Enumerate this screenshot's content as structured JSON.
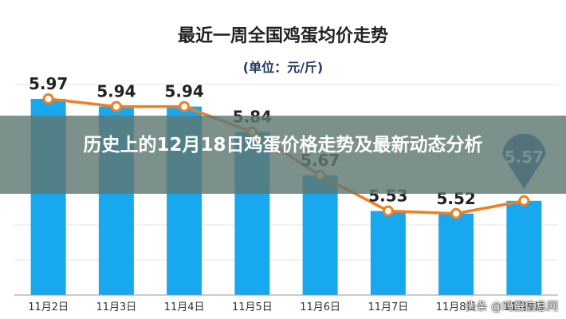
{
  "chart_data": {
    "type": "bar",
    "title": "最近一周全国鸡蛋均价走势",
    "subtitle": "(单位：元/斤)",
    "categories": [
      "11月2日",
      "11月3日",
      "11月4日",
      "11月5日",
      "11月6日",
      "11月7日",
      "11月8日",
      "11月9日"
    ],
    "values": [
      5.97,
      5.94,
      5.94,
      5.84,
      5.67,
      5.53,
      5.52,
      5.57
    ],
    "value_labels": [
      "5.97",
      "5.94",
      "5.94",
      "5.84",
      "5.67",
      "5.53",
      "5.52",
      "5.57"
    ],
    "line_values": [
      5.97,
      5.94,
      5.94,
      5.84,
      5.67,
      5.53,
      5.52,
      5.57
    ],
    "ylim": [
      5.2,
      6.05
    ],
    "grid": true,
    "colors": {
      "bar": "#18A8EF",
      "line": "#EE7F22",
      "marker_fill": "#ffffff",
      "pin": "#1A5E9E"
    }
  },
  "overlay": {
    "title": "历史上的12月18日鸡蛋价格走势及最新动态分析"
  },
  "watermark": "头条 @鸡蛋信息网"
}
